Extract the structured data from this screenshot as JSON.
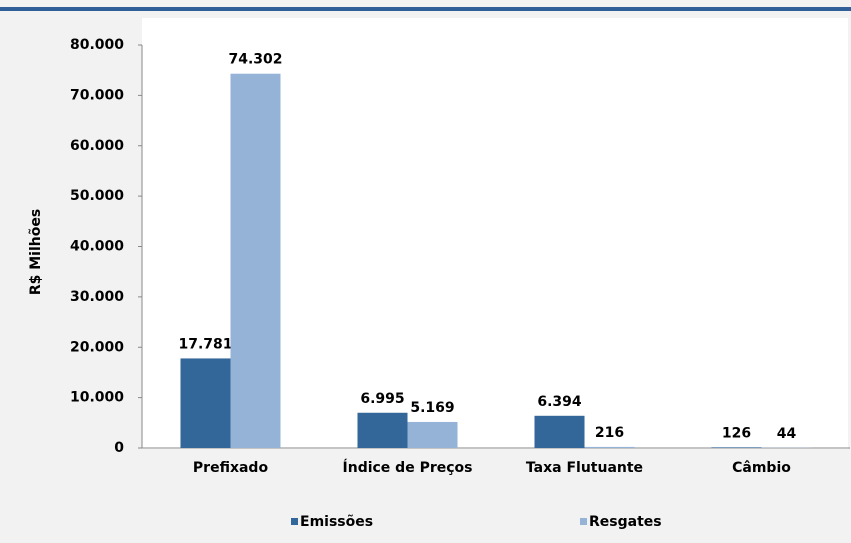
{
  "chart_data": {
    "type": "bar",
    "y_label": "R$ Milhões",
    "categories": [
      "Prefixado",
      "Índice de Preços",
      "Taxa Flutuante",
      "Câmbio"
    ],
    "series": [
      {
        "name": "Emissões",
        "color": "#336699",
        "values": [
          17781,
          6995,
          6394,
          126
        ],
        "value_labels": [
          "17.781",
          "6.995",
          "6.394",
          "126"
        ]
      },
      {
        "name": "Resgates",
        "color": "#95b3d7",
        "values": [
          74302,
          5169,
          216,
          44
        ],
        "value_labels": [
          "74.302",
          "5.169",
          "216",
          "44"
        ]
      }
    ],
    "ylim": [
      0,
      80000
    ],
    "yticks": [
      {
        "value": 0,
        "label": "0"
      },
      {
        "value": 10000,
        "label": "10.000"
      },
      {
        "value": 20000,
        "label": "20.000"
      },
      {
        "value": 30000,
        "label": "30.000"
      },
      {
        "value": 40000,
        "label": "40.000"
      },
      {
        "value": 50000,
        "label": "50.000"
      },
      {
        "value": 60000,
        "label": "60.000"
      },
      {
        "value": 70000,
        "label": "70.000"
      },
      {
        "value": 80000,
        "label": "80.000"
      }
    ],
    "legend": "bottom"
  }
}
